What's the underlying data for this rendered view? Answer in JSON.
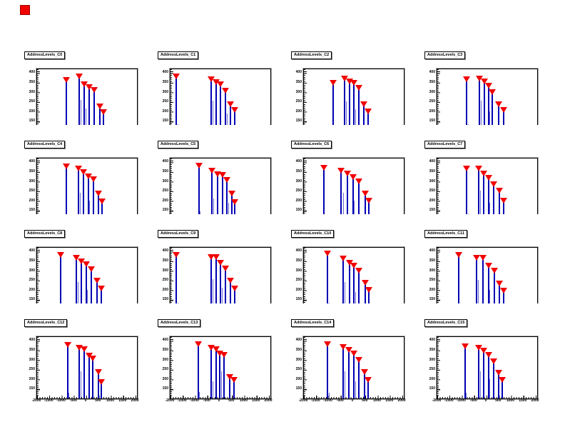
{
  "canvas": {
    "background": "#ffffff",
    "corner_marker_color": "#f20000"
  },
  "chart_data": {
    "type": "bar",
    "subtype": "stem-spikes-with-peak-markers",
    "grid": "4x4",
    "marker": "filled-triangle-down",
    "marker_color": "#f20000",
    "spike_color": "#0000b4",
    "subspike_color": "#6a6ad2",
    "x_range": [
      -2000,
      2000
    ],
    "y_range": [
      110,
      420
    ],
    "x_ticks": [
      "-2000",
      "-1500",
      "-1000",
      "-500",
      "0",
      "500",
      "1000",
      "1500",
      "2000"
    ],
    "y_ticks": [
      "400",
      "350",
      "300",
      "250",
      "200",
      "150"
    ],
    "xlabel": "",
    "ylabel": "",
    "legend": "none",
    "plots": [
      {
        "title": "AddressLevels_C0",
        "levels": [
          {
            "x": -800,
            "y": 375
          },
          {
            "x": -280,
            "y": 395
          },
          {
            "x": -100,
            "y": 355
          },
          {
            "x": 120,
            "y": 340
          },
          {
            "x": 320,
            "y": 325
          },
          {
            "x": 560,
            "y": 240
          },
          {
            "x": 680,
            "y": 210
          }
        ],
        "sublevels": [
          {
            "x": -220,
            "y": 270
          },
          {
            "x": -40,
            "y": 225
          },
          {
            "x": -760,
            "y": 140
          }
        ]
      },
      {
        "title": "AddressLevels_C1",
        "levels": [
          {
            "x": -1760,
            "y": 395
          },
          {
            "x": -360,
            "y": 380
          },
          {
            "x": -160,
            "y": 365
          },
          {
            "x": 40,
            "y": 355
          },
          {
            "x": 240,
            "y": 320
          },
          {
            "x": 440,
            "y": 250
          },
          {
            "x": 600,
            "y": 220
          }
        ],
        "sublevels": [
          {
            "x": -300,
            "y": 265
          },
          {
            "x": 280,
            "y": 200
          },
          {
            "x": -1720,
            "y": 145
          }
        ]
      },
      {
        "title": "AddressLevels_C2",
        "levels": [
          {
            "x": -800,
            "y": 360
          },
          {
            "x": -360,
            "y": 385
          },
          {
            "x": -160,
            "y": 370
          },
          {
            "x": 40,
            "y": 360
          },
          {
            "x": 240,
            "y": 335
          },
          {
            "x": 440,
            "y": 250
          },
          {
            "x": 600,
            "y": 215
          }
        ],
        "sublevels": [
          {
            "x": -300,
            "y": 260
          },
          {
            "x": 80,
            "y": 220
          },
          {
            "x": -760,
            "y": 140
          }
        ]
      },
      {
        "title": "AddressLevels_C3",
        "levels": [
          {
            "x": -800,
            "y": 380
          },
          {
            "x": -280,
            "y": 385
          },
          {
            "x": -80,
            "y": 370
          },
          {
            "x": 80,
            "y": 345
          },
          {
            "x": 240,
            "y": 315
          },
          {
            "x": 480,
            "y": 250
          },
          {
            "x": 680,
            "y": 220
          }
        ],
        "sublevels": [
          {
            "x": -220,
            "y": 265
          },
          {
            "x": 120,
            "y": 210
          },
          {
            "x": -760,
            "y": 145
          }
        ]
      },
      {
        "title": "AddressLevels_C4",
        "levels": [
          {
            "x": -800,
            "y": 390
          },
          {
            "x": -320,
            "y": 380
          },
          {
            "x": -120,
            "y": 360
          },
          {
            "x": 80,
            "y": 340
          },
          {
            "x": 280,
            "y": 325
          },
          {
            "x": 480,
            "y": 250
          },
          {
            "x": 640,
            "y": 210
          }
        ],
        "sublevels": [
          {
            "x": -260,
            "y": 250
          },
          {
            "x": 120,
            "y": 210
          },
          {
            "x": -760,
            "y": 140
          }
        ]
      },
      {
        "title": "AddressLevels_C5",
        "levels": [
          {
            "x": -840,
            "y": 395
          },
          {
            "x": -320,
            "y": 370
          },
          {
            "x": -100,
            "y": 350
          },
          {
            "x": 100,
            "y": 345
          },
          {
            "x": 300,
            "y": 320
          },
          {
            "x": 480,
            "y": 250
          },
          {
            "x": 620,
            "y": 205
          }
        ],
        "sublevels": [
          {
            "x": -260,
            "y": 220
          },
          {
            "x": 360,
            "y": 200
          },
          {
            "x": -800,
            "y": 155
          }
        ]
      },
      {
        "title": "AddressLevels_C6",
        "levels": [
          {
            "x": -1200,
            "y": 385
          },
          {
            "x": -480,
            "y": 370
          },
          {
            "x": -240,
            "y": 355
          },
          {
            "x": 0,
            "y": 335
          },
          {
            "x": 240,
            "y": 315
          },
          {
            "x": 480,
            "y": 250
          },
          {
            "x": 640,
            "y": 215
          }
        ],
        "sublevels": [
          {
            "x": -420,
            "y": 250
          },
          {
            "x": 40,
            "y": 210
          },
          {
            "x": -1160,
            "y": 140
          }
        ]
      },
      {
        "title": "AddressLevels_C7",
        "levels": [
          {
            "x": -800,
            "y": 380
          },
          {
            "x": -320,
            "y": 380
          },
          {
            "x": -120,
            "y": 355
          },
          {
            "x": 80,
            "y": 330
          },
          {
            "x": 280,
            "y": 300
          },
          {
            "x": 520,
            "y": 265
          },
          {
            "x": 680,
            "y": 215
          }
        ],
        "sublevels": [
          {
            "x": -260,
            "y": 260
          },
          {
            "x": 120,
            "y": 200
          },
          {
            "x": -760,
            "y": 145
          }
        ]
      },
      {
        "title": "AddressLevels_C8",
        "levels": [
          {
            "x": -1040,
            "y": 395
          },
          {
            "x": -400,
            "y": 380
          },
          {
            "x": -200,
            "y": 360
          },
          {
            "x": 0,
            "y": 345
          },
          {
            "x": 200,
            "y": 320
          },
          {
            "x": 440,
            "y": 260
          },
          {
            "x": 600,
            "y": 220
          }
        ],
        "sublevels": [
          {
            "x": -340,
            "y": 250
          },
          {
            "x": 40,
            "y": 210
          },
          {
            "x": -1000,
            "y": 140
          }
        ]
      },
      {
        "title": "AddressLevels_C9",
        "levels": [
          {
            "x": -1760,
            "y": 395
          },
          {
            "x": -360,
            "y": 385
          },
          {
            "x": -160,
            "y": 385
          },
          {
            "x": 40,
            "y": 355
          },
          {
            "x": 240,
            "y": 325
          },
          {
            "x": 440,
            "y": 260
          },
          {
            "x": 600,
            "y": 220
          }
        ],
        "sublevels": [
          {
            "x": -300,
            "y": 265
          },
          {
            "x": 80,
            "y": 220
          },
          {
            "x": -1720,
            "y": 145
          }
        ]
      },
      {
        "title": "AddressLevels_C10",
        "levels": [
          {
            "x": -1040,
            "y": 400
          },
          {
            "x": -400,
            "y": 375
          },
          {
            "x": -160,
            "y": 355
          },
          {
            "x": 40,
            "y": 340
          },
          {
            "x": 240,
            "y": 315
          },
          {
            "x": 480,
            "y": 250
          },
          {
            "x": 640,
            "y": 215
          }
        ],
        "sublevels": [
          {
            "x": -340,
            "y": 250
          },
          {
            "x": 80,
            "y": 200
          },
          {
            "x": -1000,
            "y": 145
          }
        ]
      },
      {
        "title": "AddressLevels_C11",
        "levels": [
          {
            "x": -1120,
            "y": 395
          },
          {
            "x": -400,
            "y": 380
          },
          {
            "x": -160,
            "y": 380
          },
          {
            "x": 80,
            "y": 340
          },
          {
            "x": 320,
            "y": 315
          },
          {
            "x": 520,
            "y": 245
          },
          {
            "x": 680,
            "y": 210
          }
        ],
        "sublevels": [
          {
            "x": -340,
            "y": 260
          },
          {
            "x": 120,
            "y": 210
          },
          {
            "x": -1080,
            "y": 140
          }
        ]
      },
      {
        "title": "AddressLevels_C12",
        "levels": [
          {
            "x": -760,
            "y": 390
          },
          {
            "x": -280,
            "y": 375
          },
          {
            "x": -100,
            "y": 370
          },
          {
            "x": 100,
            "y": 335
          },
          {
            "x": 260,
            "y": 320
          },
          {
            "x": 480,
            "y": 250
          },
          {
            "x": 620,
            "y": 200
          }
        ],
        "sublevels": [
          {
            "x": -220,
            "y": 250
          },
          {
            "x": -80,
            "y": 195
          },
          {
            "x": -720,
            "y": 140
          }
        ]
      },
      {
        "title": "AddressLevels_C13",
        "levels": [
          {
            "x": -880,
            "y": 395
          },
          {
            "x": -360,
            "y": 375
          },
          {
            "x": -160,
            "y": 370
          },
          {
            "x": 0,
            "y": 345
          },
          {
            "x": 180,
            "y": 340
          },
          {
            "x": 400,
            "y": 225
          },
          {
            "x": 580,
            "y": 210
          }
        ],
        "sublevels": [
          {
            "x": -300,
            "y": 200
          },
          {
            "x": 60,
            "y": 250
          },
          {
            "x": -840,
            "y": 145
          }
        ]
      },
      {
        "title": "AddressLevels_C14",
        "levels": [
          {
            "x": -1040,
            "y": 395
          },
          {
            "x": -400,
            "y": 380
          },
          {
            "x": -180,
            "y": 365
          },
          {
            "x": 40,
            "y": 345
          },
          {
            "x": 240,
            "y": 315
          },
          {
            "x": 460,
            "y": 250
          },
          {
            "x": 620,
            "y": 210
          }
        ],
        "sublevels": [
          {
            "x": -340,
            "y": 250
          },
          {
            "x": 80,
            "y": 200
          },
          {
            "x": -1000,
            "y": 140
          }
        ]
      },
      {
        "title": "AddressLevels_C15",
        "levels": [
          {
            "x": -880,
            "y": 385
          },
          {
            "x": -320,
            "y": 375
          },
          {
            "x": -120,
            "y": 360
          },
          {
            "x": 80,
            "y": 340
          },
          {
            "x": 280,
            "y": 305
          },
          {
            "x": 480,
            "y": 245
          },
          {
            "x": 640,
            "y": 210
          }
        ],
        "sublevels": [
          {
            "x": -260,
            "y": 250
          },
          {
            "x": 120,
            "y": 210
          },
          {
            "x": -840,
            "y": 140
          }
        ]
      }
    ]
  }
}
